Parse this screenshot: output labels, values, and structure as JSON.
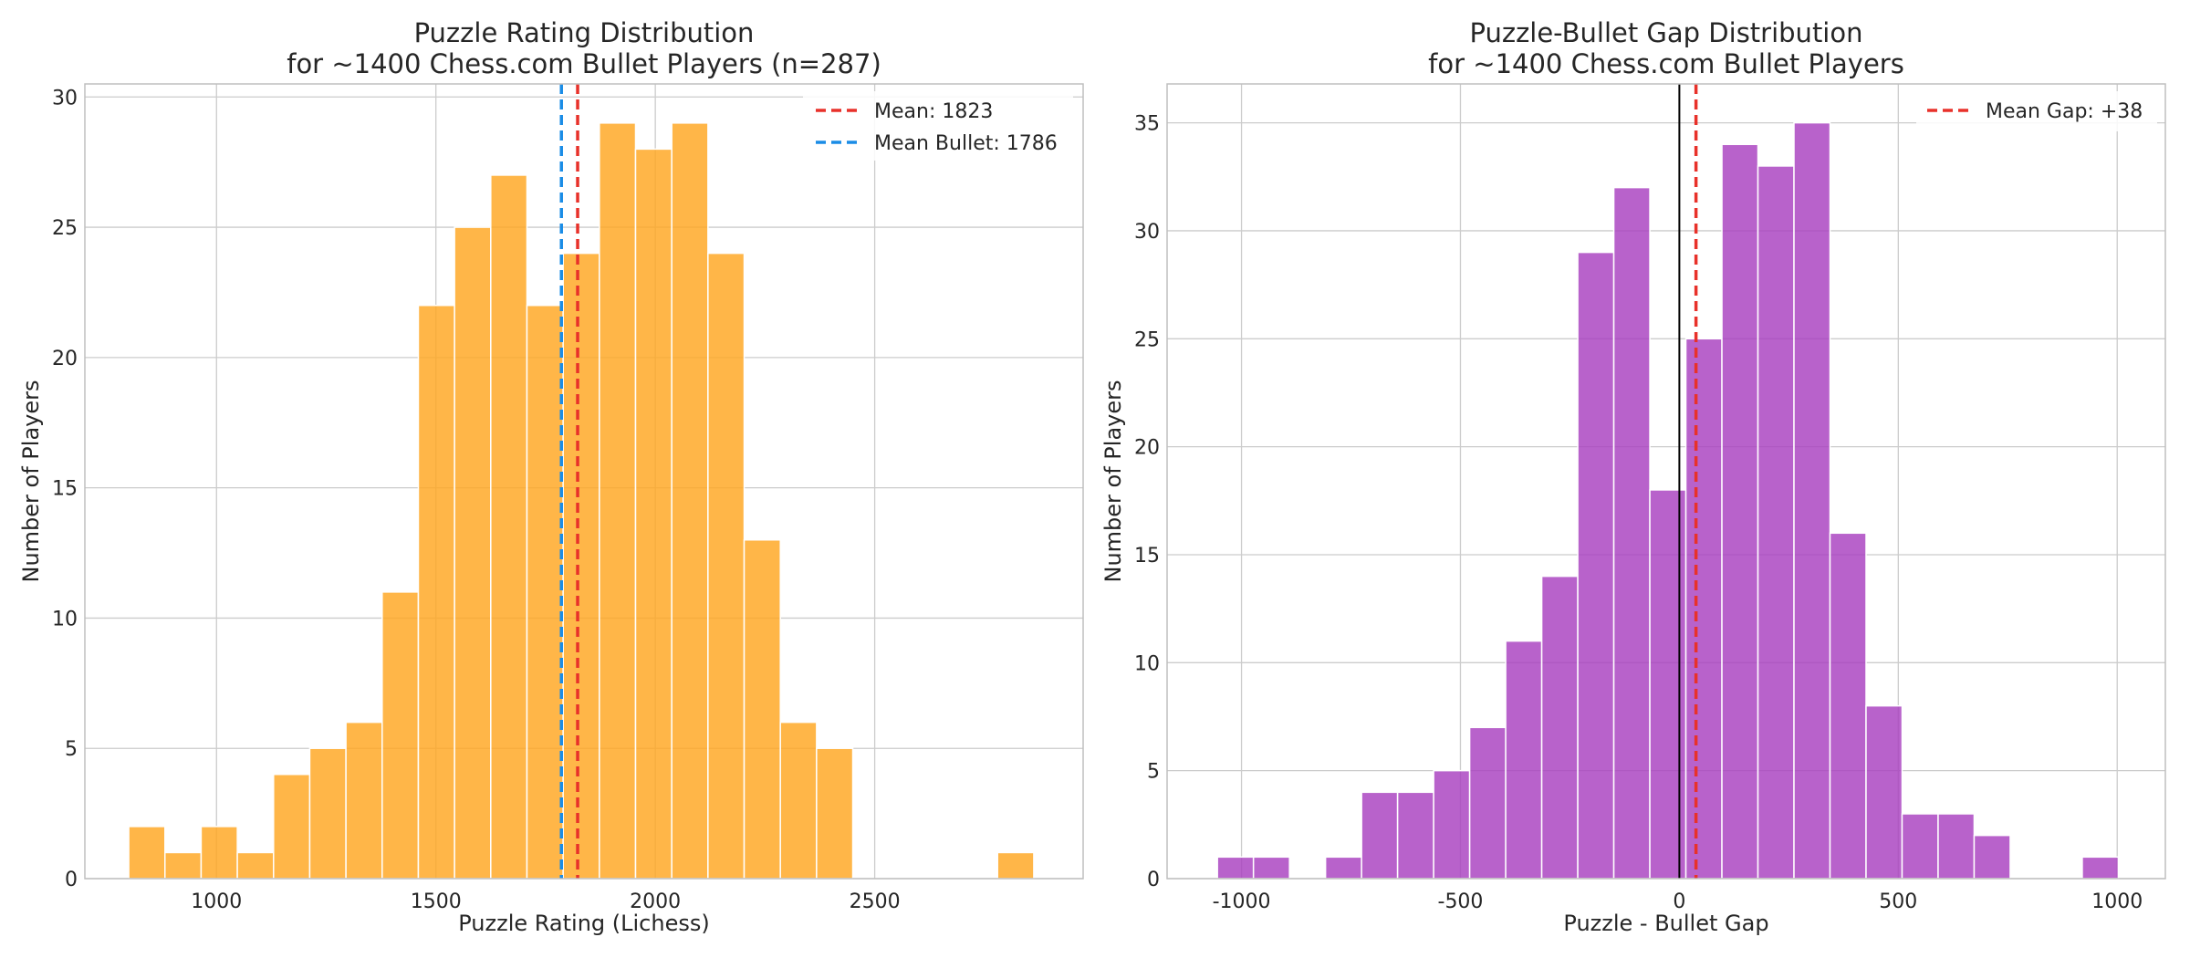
{
  "chart_data": [
    {
      "type": "bar",
      "title": "Puzzle Rating Distribution",
      "subtitle": "for ~1400 Chess.com Bullet Players (n=287)",
      "xlabel": "Puzzle Rating (Lichess)",
      "ylabel": "Number of Players",
      "xlim": [
        700,
        2975
      ],
      "ylim": [
        0,
        30.5
      ],
      "xticks": [
        1000,
        1500,
        2000,
        2500
      ],
      "xtick_labels": [
        "1000",
        "1500",
        "2000",
        "2500"
      ],
      "yticks": [
        0,
        5,
        10,
        15,
        20,
        25,
        30
      ],
      "ytick_labels": [
        "0",
        "5",
        "10",
        "15",
        "20",
        "25",
        "30"
      ],
      "grid": true,
      "bar_color": "#ffa620",
      "bins": {
        "start": 800,
        "width": 82.5,
        "values": [
          2,
          1,
          2,
          1,
          4,
          5,
          6,
          11,
          22,
          25,
          27,
          22,
          24,
          29,
          28,
          29,
          24,
          13,
          6,
          5,
          0,
          0,
          0,
          0,
          1
        ]
      },
      "lines": [
        {
          "x": 1823,
          "label": "Mean: 1823",
          "color": "#e8312a",
          "style": "dashed"
        },
        {
          "x": 1786,
          "label": "Mean Bullet: 1786",
          "color": "#1a8ce6",
          "style": "dashed"
        }
      ],
      "legend": {
        "placement": "top-right"
      }
    },
    {
      "type": "bar",
      "title": "Puzzle-Bullet Gap Distribution",
      "subtitle": "for ~1400 Chess.com Bullet Players",
      "xlabel": "Puzzle - Bullet Gap",
      "ylabel": "Number of Players",
      "xlim": [
        -1170,
        1110
      ],
      "ylim": [
        0,
        36.8
      ],
      "xticks": [
        -1000,
        -500,
        0,
        500,
        1000
      ],
      "xtick_labels": [
        "-1000",
        "-500",
        "0",
        "500",
        "1000"
      ],
      "yticks": [
        0,
        5,
        10,
        15,
        20,
        25,
        30,
        35
      ],
      "ytick_labels": [
        "0",
        "5",
        "10",
        "15",
        "20",
        "25",
        "30",
        "35"
      ],
      "grid": true,
      "bar_color": "#a83fbf",
      "bins": {
        "start": -1055,
        "width": 82.3,
        "values": [
          1,
          1,
          0,
          1,
          4,
          4,
          5,
          7,
          11,
          14,
          29,
          32,
          18,
          25,
          34,
          33,
          35,
          16,
          8,
          3,
          3,
          2,
          0,
          0,
          1
        ]
      },
      "lines": [
        {
          "x": 0,
          "label": "",
          "color": "#000000",
          "style": "solid"
        },
        {
          "x": 38,
          "label": "Mean Gap: +38",
          "color": "#e8312a",
          "style": "dashed"
        }
      ],
      "legend": {
        "placement": "top-right"
      }
    }
  ]
}
